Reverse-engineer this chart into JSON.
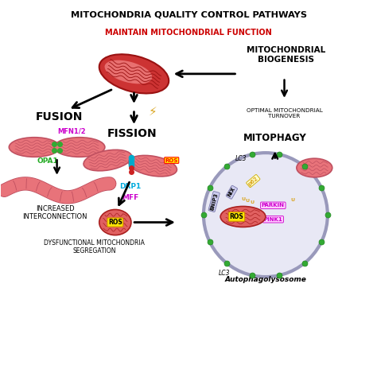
{
  "title_line1": "MITOCHONDRIA QUALITY CONTROL PATHWAYS",
  "title_line2": "MAINTAIN MITOCHONDRIAL FUNCTION",
  "title_line1_color": "#000000",
  "title_line2_color": "#CC0000",
  "bg_color": "#FFFFFF",
  "fusion_label": "FUSION",
  "fission_label": "FISSION",
  "mitophagy_label": "MITOPHAGY",
  "mitobiogenesis_label": "MITOCHONDRIAL\nBIOGENESIS",
  "optimal_label": "OPTIMAL MITOCHONDRIAL\nTURNOVER",
  "interconnection_label": "INCREASED\nINTERCONNECTION",
  "dysfunctional_label": "DYSFUNCTIONAL MITOCHONDRIA\nSEGREGATION",
  "autophagolysosome_label": "Autophagolysosome",
  "lc3_label": "LC3",
  "mfn_label": "MFN1/2",
  "opa1_label": "OPA1",
  "drp1_label": "DRP1",
  "mff_label": "MFF",
  "bnip3_label": "BNIP3",
  "nix_label": "NIX",
  "p62_label": "p62",
  "parkin_label": "PARKIN",
  "pink1_label": "PINK1",
  "ros_label": "ROS",
  "mito_pink": "#E8737A",
  "mito_dark_pink": "#C05060",
  "mito_red": "#CC3333",
  "green_dot": "#33AA33",
  "cyan_dot": "#00AACC",
  "red_dot": "#CC2222",
  "lysosome_border": "#9999BB",
  "lysosome_fill": "#E8E8F5",
  "gold_color": "#DAA520",
  "magenta_color": "#CC00CC",
  "cyan_color": "#00AADD",
  "green_color": "#22AA22",
  "orange_yellow": "#DAA520",
  "black": "#000000"
}
